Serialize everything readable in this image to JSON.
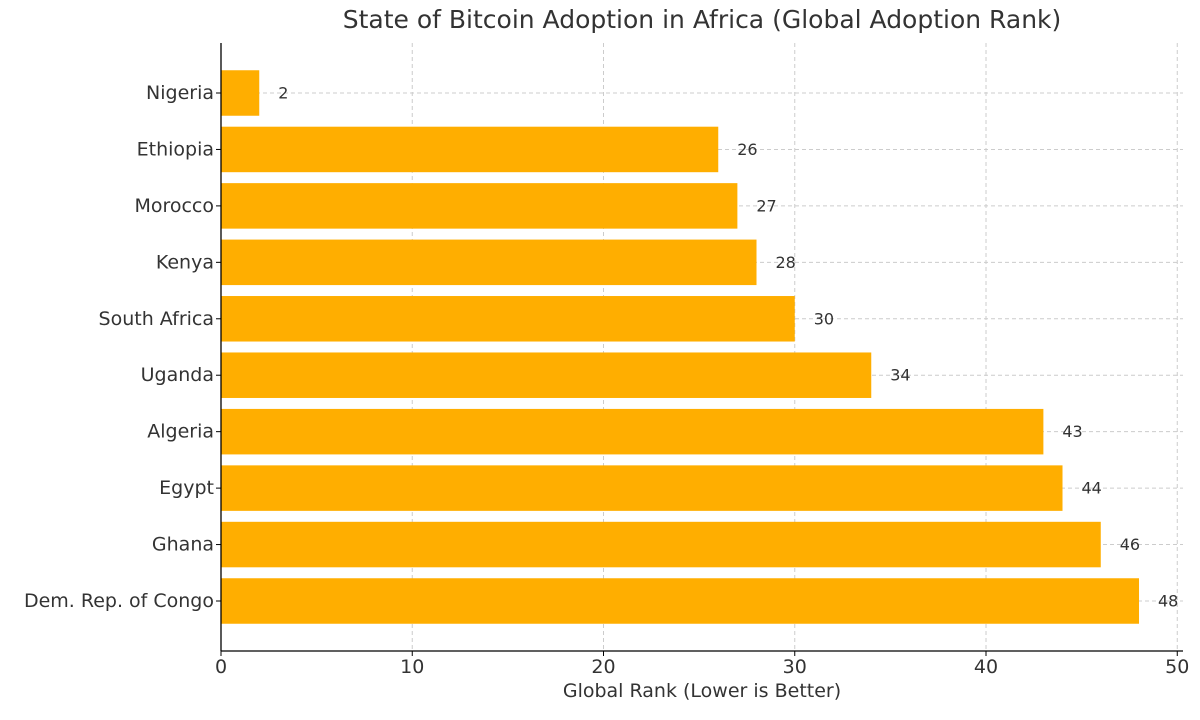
{
  "chart_data": {
    "type": "bar",
    "orientation": "horizontal",
    "title": "State of Bitcoin Adoption in Africa (Global Adoption Rank)",
    "xlabel": "Global Rank (Lower is Better)",
    "ylabel": "",
    "categories": [
      "Nigeria",
      "Ethiopia",
      "Morocco",
      "Kenya",
      "South Africa",
      "Uganda",
      "Algeria",
      "Egypt",
      "Ghana",
      "Dem. Rep. of Congo"
    ],
    "values": [
      2,
      26,
      27,
      28,
      30,
      34,
      43,
      44,
      46,
      48
    ],
    "xlim": [
      0,
      50.3
    ],
    "xticks": [
      0,
      10,
      20,
      30,
      40,
      50
    ],
    "grid": true,
    "bar_color": "#FFAE00",
    "data_labels": true
  }
}
